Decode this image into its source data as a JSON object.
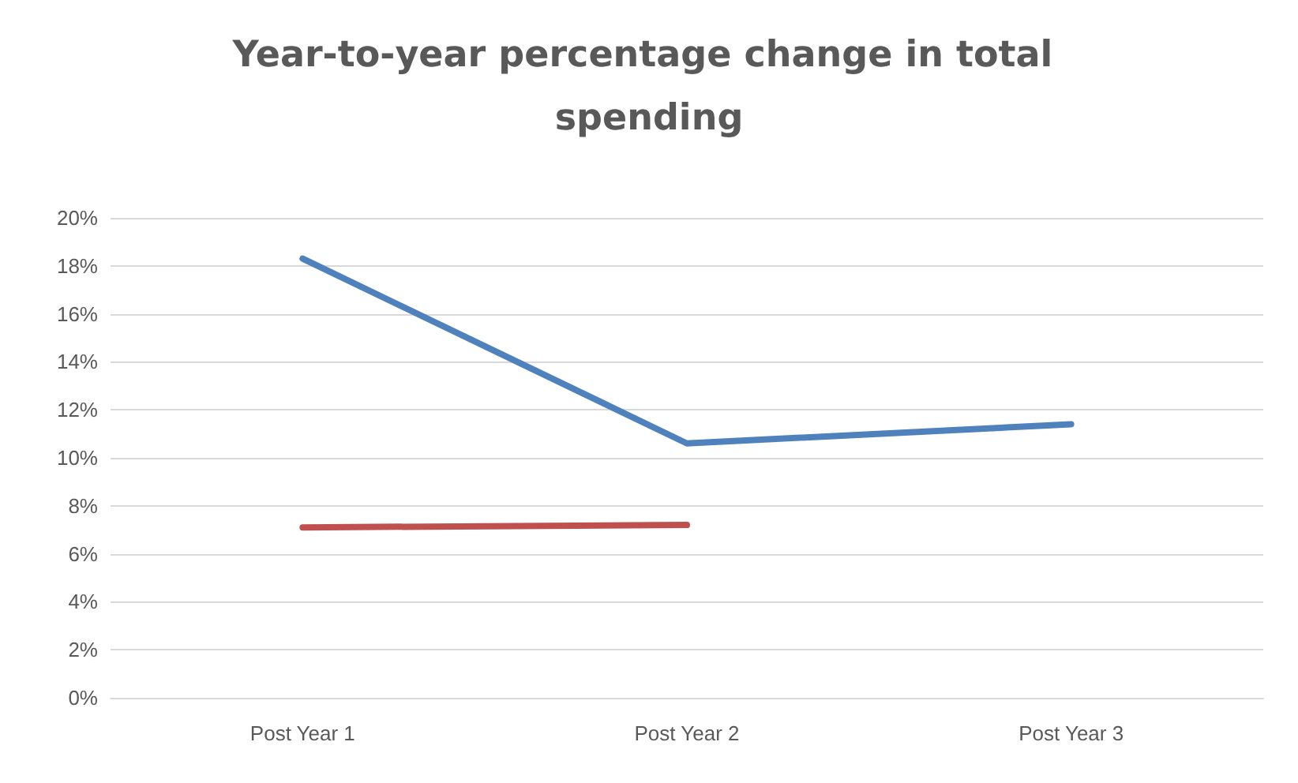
{
  "chart_data": {
    "type": "line",
    "title": "Year-to-year percentage change in total spending",
    "categories": [
      "Post Year 1",
      "Post Year 2",
      "Post Year 3"
    ],
    "series": [
      {
        "color": "#4f81bd",
        "values": [
          18.3,
          10.6,
          11.4
        ]
      },
      {
        "color": "#c0504d",
        "values": [
          7.1,
          7.2,
          null
        ]
      }
    ],
    "ylim": [
      0,
      20
    ],
    "yticks": [
      {
        "value": 0,
        "label": "0%"
      },
      {
        "value": 2,
        "label": "2%"
      },
      {
        "value": 4,
        "label": "4%"
      },
      {
        "value": 6,
        "label": "6%"
      },
      {
        "value": 8,
        "label": "8%"
      },
      {
        "value": 10,
        "label": "10%"
      },
      {
        "value": 12,
        "label": "12%"
      },
      {
        "value": 14,
        "label": "14%"
      },
      {
        "value": 16,
        "label": "16%"
      },
      {
        "value": 18,
        "label": "18%"
      },
      {
        "value": 20,
        "label": "20%"
      }
    ],
    "grid": "y",
    "marker": "none",
    "line_style": "solid"
  }
}
